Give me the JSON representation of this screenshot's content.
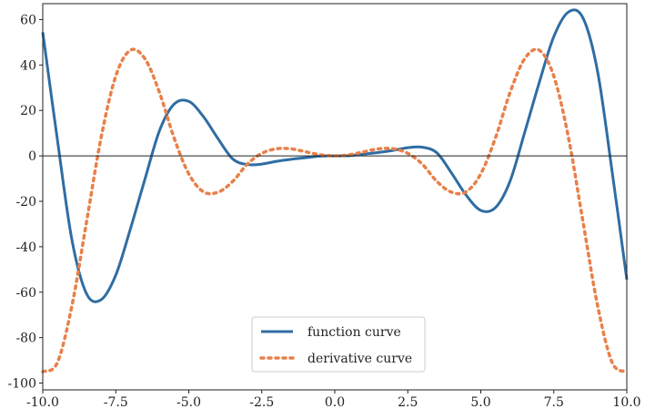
{
  "chart_data": {
    "type": "line",
    "title": "",
    "xlabel": "",
    "ylabel": "",
    "xlim": [
      -10,
      10
    ],
    "ylim": [
      -103,
      67
    ],
    "x_ticks": [
      -10,
      -7.5,
      -5,
      -2.5,
      0,
      2.5,
      5,
      7.5,
      10
    ],
    "x_tick_labels": [
      "-10.0",
      "-7.5",
      "-5.0",
      "-2.5",
      "0.0",
      "2.5",
      "5.0",
      "7.5",
      "10.0"
    ],
    "y_ticks": [
      -100,
      -80,
      -60,
      -40,
      -20,
      0,
      20,
      40,
      60
    ],
    "y_tick_labels": [
      "-100",
      "-80",
      "-60",
      "-40",
      "-20",
      "0",
      "20",
      "40",
      "60"
    ],
    "grid": false,
    "legend_position": "bottom-center",
    "reference_line": {
      "y": 0,
      "color": "#000000"
    },
    "series": [
      {
        "name": "function curve",
        "style": "solid",
        "color": "#2f6da3",
        "x": [
          -10,
          -9.5,
          -9,
          -8.5,
          -8,
          -7.5,
          -7,
          -6.5,
          -6,
          -5.5,
          -5,
          -4.5,
          -4,
          -3.5,
          -3,
          -2.5,
          -2,
          -1.5,
          -1,
          -0.5,
          0,
          0.5,
          1,
          1.5,
          2,
          2.5,
          3,
          3.5,
          4,
          4.5,
          5,
          5.5,
          6,
          6.5,
          7,
          7.5,
          8,
          8.5,
          9,
          9.5,
          10
        ],
        "y": [
          54.4,
          7.2,
          -37.1,
          -60.7,
          -63.3,
          -52.5,
          -32.2,
          -10.2,
          11.2,
          22.8,
          24.0,
          17.3,
          7.6,
          -1.3,
          -3.8,
          -3.6,
          -2.4,
          -1.5,
          -0.8,
          -0.1,
          0.0,
          0.1,
          0.8,
          1.5,
          2.4,
          3.6,
          3.8,
          1.3,
          -7.6,
          -17.3,
          -24.0,
          -22.8,
          -11.2,
          10.2,
          32.2,
          52.5,
          63.3,
          60.7,
          37.1,
          -7.2,
          -54.4
        ]
      },
      {
        "name": "derivative curve",
        "style": "dotted",
        "color": "#e8804a",
        "x": [
          -10,
          -9.5,
          -9,
          -8.5,
          -8,
          -7.5,
          -7,
          -6.5,
          -6,
          -5.5,
          -5,
          -4.5,
          -4,
          -3.5,
          -3,
          -2.5,
          -2,
          -1.5,
          -1,
          -0.5,
          0,
          0.5,
          1,
          1.5,
          2,
          2.5,
          3,
          3.5,
          4,
          4.5,
          5,
          5.5,
          6,
          6.5,
          7,
          7.5,
          8,
          8.5,
          9,
          9.5,
          10
        ],
        "y": [
          -95.0,
          -91.0,
          -65.9,
          -29.0,
          8.2,
          35.1,
          46.5,
          42.7,
          27.8,
          7.8,
          -7.9,
          -15.8,
          -16.0,
          -11.3,
          -3.7,
          1.1,
          3.1,
          3.1,
          1.8,
          0.5,
          0.0,
          0.5,
          1.8,
          3.1,
          3.1,
          1.1,
          -3.7,
          -11.3,
          -16.0,
          -15.8,
          -7.9,
          7.8,
          27.8,
          42.7,
          46.5,
          35.1,
          8.2,
          -29.0,
          -65.9,
          -91.0,
          -95.0
        ]
      }
    ]
  }
}
